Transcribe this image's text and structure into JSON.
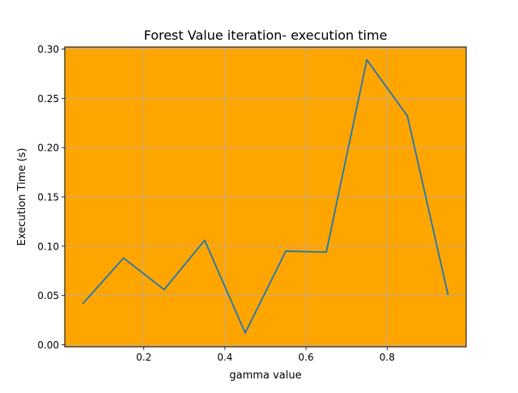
{
  "chart_data": {
    "type": "line",
    "title": "Forest Value iteration- execution time",
    "xlabel": "gamma value",
    "ylabel": "Execution Time (s)",
    "xlim": [
      0.005,
      0.995
    ],
    "ylim": [
      -0.002,
      0.302
    ],
    "xticks": [
      0.2,
      0.4,
      0.6,
      0.8
    ],
    "xtick_labels": [
      "0.2",
      "0.4",
      "0.6",
      "0.8"
    ],
    "yticks": [
      0.0,
      0.05,
      0.1,
      0.15,
      0.2,
      0.25,
      0.3
    ],
    "ytick_labels": [
      "0.00",
      "0.05",
      "0.10",
      "0.15",
      "0.20",
      "0.25",
      "0.30"
    ],
    "grid": true,
    "background_color": "#FFA500",
    "grid_color": "#b0b0b0",
    "series": [
      {
        "color": "#1f77b4",
        "x": [
          0.05,
          0.15,
          0.25,
          0.35,
          0.45,
          0.55,
          0.65,
          0.75,
          0.85,
          0.95
        ],
        "y": [
          0.042,
          0.088,
          0.056,
          0.106,
          0.012,
          0.095,
          0.094,
          0.289,
          0.232,
          0.051
        ]
      }
    ]
  }
}
